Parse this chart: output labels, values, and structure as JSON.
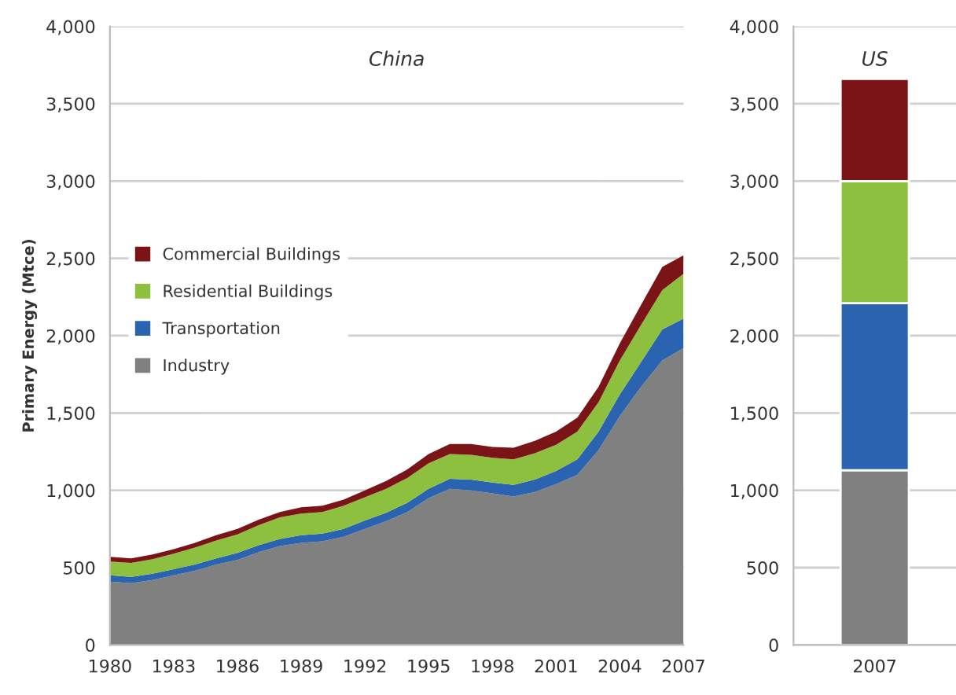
{
  "chart_data": [
    {
      "type": "area",
      "title": "China",
      "ylabel": "Primary Energy (Mtce)",
      "stacked": true,
      "grid": "y",
      "legend": "left",
      "x": [
        1980,
        1981,
        1982,
        1983,
        1984,
        1985,
        1986,
        1987,
        1988,
        1989,
        1990,
        1991,
        1992,
        1993,
        1994,
        1995,
        1996,
        1997,
        1998,
        1999,
        2000,
        2001,
        2002,
        2003,
        2004,
        2005,
        2006,
        2007
      ],
      "xlim": [
        1980,
        2007
      ],
      "xticks": [
        1980,
        1983,
        1986,
        1989,
        1992,
        1995,
        1998,
        2001,
        2004,
        2007
      ],
      "ylim": [
        0,
        4000
      ],
      "yticks": [
        {
          "value": 0,
          "label": "0"
        },
        {
          "value": 500,
          "label": "500"
        },
        {
          "value": 1000,
          "label": "1,000"
        },
        {
          "value": 1500,
          "label": "1,500"
        },
        {
          "value": 2000,
          "label": "2,000"
        },
        {
          "value": 2500,
          "label": "2,500"
        },
        {
          "value": 3000,
          "label": "3,000"
        },
        {
          "value": 3500,
          "label": "3,500"
        },
        {
          "value": 4000,
          "label": "4,000"
        }
      ],
      "series": [
        {
          "name": "Industry",
          "color": "#808080",
          "values": [
            410,
            400,
            420,
            450,
            480,
            520,
            550,
            600,
            640,
            660,
            670,
            700,
            750,
            800,
            860,
            950,
            1010,
            1000,
            980,
            960,
            990,
            1040,
            1100,
            1260,
            1480,
            1670,
            1840,
            1920
          ]
        },
        {
          "name": "Transportation",
          "color": "#2a63b0",
          "values": [
            40,
            40,
            40,
            40,
            40,
            40,
            45,
            45,
            45,
            50,
            50,
            50,
            55,
            55,
            60,
            60,
            65,
            70,
            70,
            75,
            80,
            85,
            100,
            120,
            140,
            160,
            200,
            190
          ]
        },
        {
          "name": "Residential Buildings",
          "color": "#8dc03f",
          "values": [
            90,
            90,
            95,
            100,
            110,
            115,
            120,
            130,
            140,
            140,
            140,
            150,
            150,
            155,
            160,
            165,
            160,
            160,
            160,
            165,
            170,
            170,
            180,
            190,
            220,
            240,
            255,
            290
          ]
        },
        {
          "name": "Commercial Buildings",
          "color": "#7b1416",
          "values": [
            30,
            30,
            30,
            30,
            30,
            35,
            35,
            35,
            35,
            40,
            40,
            40,
            45,
            50,
            55,
            60,
            65,
            70,
            70,
            75,
            80,
            85,
            90,
            100,
            110,
            130,
            150,
            120
          ]
        }
      ]
    },
    {
      "type": "bar",
      "title": "US",
      "stacked": true,
      "grid": "y",
      "categories": [
        "2007"
      ],
      "ylim": [
        0,
        4000
      ],
      "yticks": [
        {
          "value": 0,
          "label": "0"
        },
        {
          "value": 500,
          "label": "500"
        },
        {
          "value": 1000,
          "label": "1,000"
        },
        {
          "value": 1500,
          "label": "1,500"
        },
        {
          "value": 2000,
          "label": "2,000"
        },
        {
          "value": 2500,
          "label": "2,500"
        },
        {
          "value": 3000,
          "label": "3,000"
        },
        {
          "value": 3500,
          "label": "3,500"
        },
        {
          "value": 4000,
          "label": "4,000"
        }
      ],
      "series": [
        {
          "color": "#808080",
          "values": [
            1130
          ]
        },
        {
          "color": "#2a63b0",
          "values": [
            1080
          ]
        },
        {
          "color": "#8dc03f",
          "values": [
            790
          ]
        },
        {
          "color": "#7b1416",
          "values": [
            660
          ]
        }
      ]
    }
  ]
}
